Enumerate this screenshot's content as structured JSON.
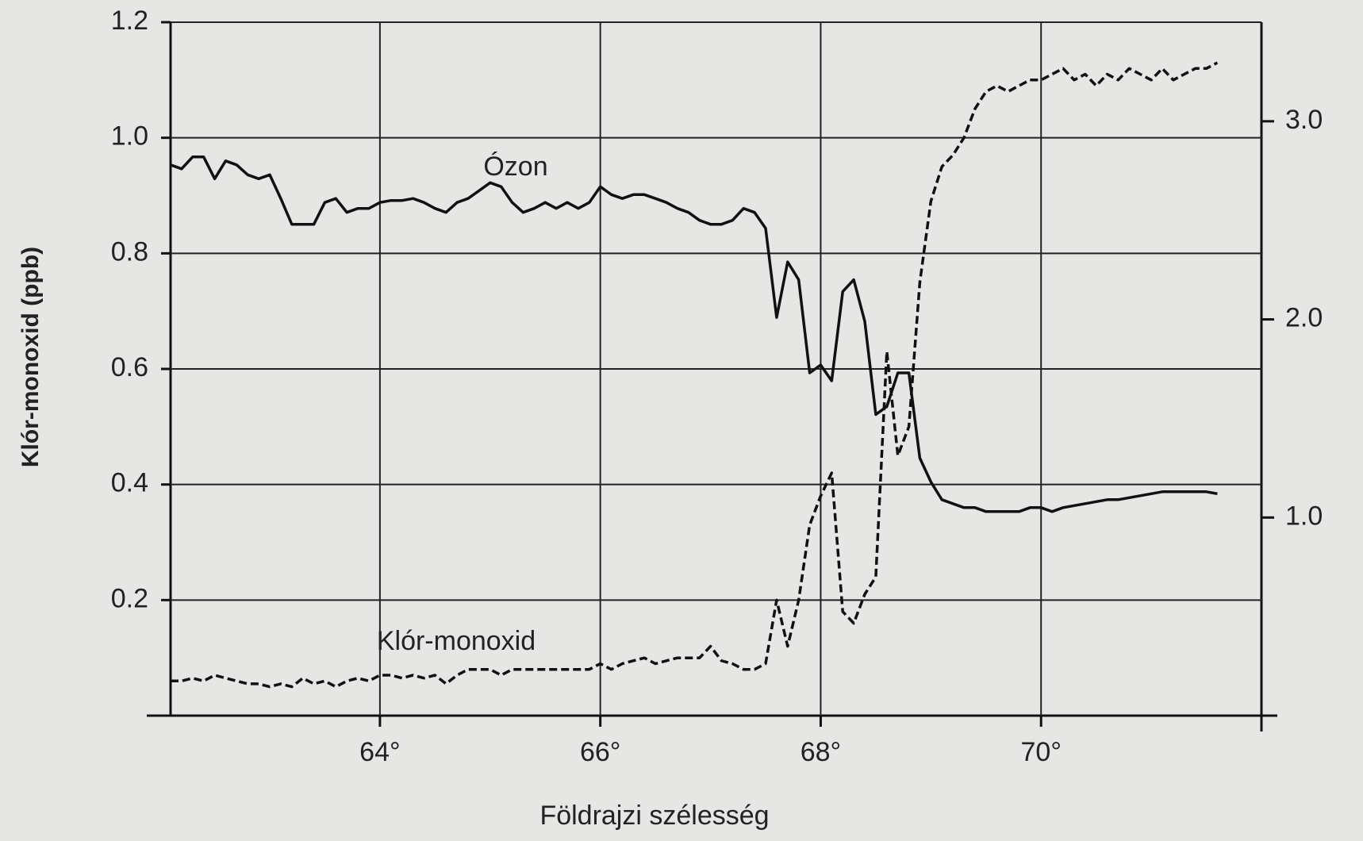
{
  "chart_data": {
    "type": "line",
    "x_label": "Földrajzi szélesség",
    "y_label": "Klór-monoxid (ppb)",
    "x": [
      62.1,
      62.2,
      62.3,
      62.4,
      62.5,
      62.6,
      62.7,
      62.8,
      62.9,
      63.0,
      63.1,
      63.2,
      63.3,
      63.4,
      63.5,
      63.6,
      63.7,
      63.8,
      63.9,
      64.0,
      64.1,
      64.2,
      64.3,
      64.4,
      64.5,
      64.6,
      64.7,
      64.8,
      64.9,
      65.0,
      65.1,
      65.2,
      65.3,
      65.4,
      65.5,
      65.6,
      65.7,
      65.8,
      65.9,
      66.0,
      66.1,
      66.2,
      66.3,
      66.4,
      66.5,
      66.6,
      66.7,
      66.8,
      66.9,
      67.0,
      67.1,
      67.2,
      67.3,
      67.4,
      67.5,
      67.6,
      67.7,
      67.8,
      67.9,
      68.0,
      68.1,
      68.2,
      68.3,
      68.4,
      68.5,
      68.6,
      68.7,
      68.8,
      68.9,
      69.0,
      69.1,
      69.2,
      69.3,
      69.4,
      69.5,
      69.6,
      69.7,
      69.8,
      69.9,
      70.0,
      70.1,
      70.2,
      70.3,
      70.4,
      70.5,
      70.6,
      70.7,
      70.8,
      70.9,
      71.0,
      71.1,
      71.2,
      71.3,
      71.4,
      71.5,
      71.6
    ],
    "series": [
      {
        "name": "Ózon",
        "color": "#111111",
        "dash": "solid",
        "axis": "y2",
        "values": [
          2.78,
          2.76,
          2.82,
          2.82,
          2.71,
          2.8,
          2.78,
          2.73,
          2.71,
          2.73,
          2.61,
          2.48,
          2.48,
          2.48,
          2.59,
          2.61,
          2.54,
          2.56,
          2.56,
          2.59,
          2.6,
          2.6,
          2.61,
          2.59,
          2.56,
          2.54,
          2.59,
          2.61,
          2.65,
          2.69,
          2.67,
          2.59,
          2.54,
          2.56,
          2.59,
          2.56,
          2.59,
          2.56,
          2.59,
          2.67,
          2.63,
          2.61,
          2.63,
          2.63,
          2.61,
          2.59,
          2.56,
          2.54,
          2.5,
          2.48,
          2.48,
          2.5,
          2.56,
          2.54,
          2.46,
          2.01,
          2.29,
          2.2,
          1.73,
          1.77,
          1.69,
          2.14,
          2.2,
          1.99,
          1.52,
          1.56,
          1.73,
          1.73,
          1.3,
          1.18,
          1.09,
          1.07,
          1.05,
          1.05,
          1.03,
          1.03,
          1.03,
          1.03,
          1.05,
          1.05,
          1.03,
          1.05,
          1.06,
          1.07,
          1.08,
          1.09,
          1.09,
          1.1,
          1.11,
          1.12,
          1.13,
          1.13,
          1.13,
          1.13,
          1.13,
          1.12
        ]
      },
      {
        "name": "Klór-monoxid",
        "color": "#111111",
        "dash": "dashed",
        "axis": "y",
        "values": [
          0.06,
          0.06,
          0.065,
          0.06,
          0.07,
          0.065,
          0.06,
          0.055,
          0.055,
          0.05,
          0.055,
          0.05,
          0.065,
          0.055,
          0.06,
          0.05,
          0.06,
          0.065,
          0.06,
          0.07,
          0.07,
          0.065,
          0.07,
          0.065,
          0.07,
          0.055,
          0.07,
          0.08,
          0.08,
          0.08,
          0.07,
          0.08,
          0.08,
          0.08,
          0.08,
          0.08,
          0.08,
          0.08,
          0.08,
          0.09,
          0.08,
          0.09,
          0.095,
          0.1,
          0.09,
          0.095,
          0.1,
          0.1,
          0.1,
          0.12,
          0.095,
          0.09,
          0.08,
          0.08,
          0.09,
          0.2,
          0.12,
          0.2,
          0.33,
          0.38,
          0.42,
          0.18,
          0.16,
          0.21,
          0.24,
          0.63,
          0.45,
          0.5,
          0.75,
          0.89,
          0.95,
          0.97,
          1.0,
          1.05,
          1.08,
          1.09,
          1.08,
          1.09,
          1.1,
          1.1,
          1.11,
          1.12,
          1.1,
          1.11,
          1.09,
          1.11,
          1.1,
          1.12,
          1.11,
          1.1,
          1.12,
          1.1,
          1.11,
          1.12,
          1.12,
          1.13
        ]
      }
    ],
    "xlim": [
      62.1,
      72.0
    ],
    "xticks": [
      {
        "value": 64,
        "label": "64°"
      },
      {
        "value": 66,
        "label": "66°"
      },
      {
        "value": 68,
        "label": "68°"
      },
      {
        "value": 70,
        "label": "70°"
      }
    ],
    "ylim": [
      0,
      1.2
    ],
    "yticks": [
      0.2,
      0.4,
      0.6,
      0.8,
      {
        "value": 1.0,
        "label": "1.0"
      },
      1.2
    ],
    "y2lim": [
      0,
      3.5
    ],
    "y2ticks": [
      {
        "value": 1.0,
        "label": "1.0"
      },
      {
        "value": 2.0,
        "label": "2.0"
      },
      {
        "value": 3.0,
        "label": "3.0"
      }
    ],
    "grid": true
  }
}
